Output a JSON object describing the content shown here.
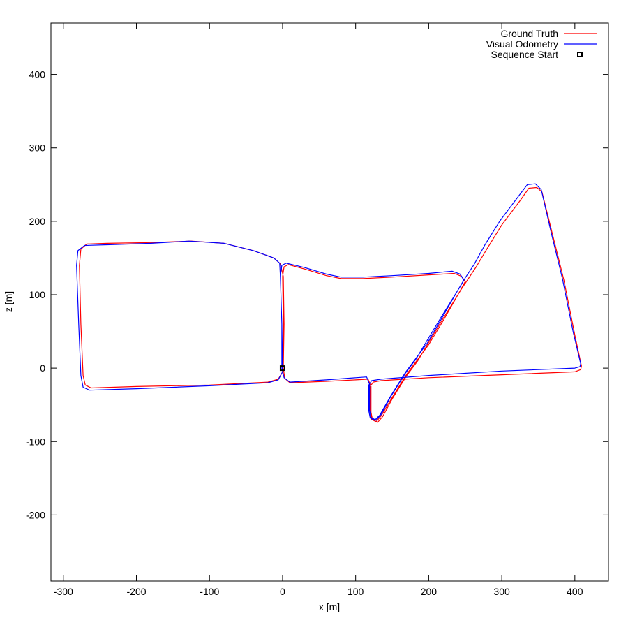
{
  "chart_data": {
    "type": "line",
    "title": "",
    "xlabel": "x [m]",
    "ylabel": "z [m]",
    "xlim": [
      -317,
      446
    ],
    "ylim": [
      -290,
      470
    ],
    "xticks": [
      -300,
      -200,
      -100,
      0,
      100,
      200,
      300,
      400
    ],
    "yticks": [
      -200,
      -100,
      0,
      100,
      200,
      300,
      400
    ],
    "grid": false,
    "legend_position": "top-right",
    "series": [
      {
        "name": "Ground Truth",
        "color": "#ff0000",
        "points": [
          [
            0,
            0
          ],
          [
            1,
            60
          ],
          [
            0,
            125
          ],
          [
            2,
            138
          ],
          [
            8,
            141
          ],
          [
            30,
            135
          ],
          [
            60,
            126
          ],
          [
            80,
            122
          ],
          [
            110,
            122
          ],
          [
            150,
            124
          ],
          [
            200,
            127
          ],
          [
            235,
            129
          ],
          [
            245,
            125
          ],
          [
            250,
            118
          ],
          [
            240,
            100
          ],
          [
            220,
            65
          ],
          [
            200,
            32
          ],
          [
            185,
            12
          ],
          [
            170,
            -8
          ],
          [
            150,
            -40
          ],
          [
            135,
            -65
          ],
          [
            128,
            -73
          ],
          [
            122,
            -70
          ],
          [
            120,
            -60
          ],
          [
            120,
            -25
          ],
          [
            124,
            -19
          ],
          [
            135,
            -17
          ],
          [
            200,
            -13
          ],
          [
            300,
            -9
          ],
          [
            400,
            -5
          ],
          [
            408,
            -2
          ],
          [
            409,
            3
          ],
          [
            400,
            45
          ],
          [
            385,
            120
          ],
          [
            370,
            180
          ],
          [
            355,
            240
          ],
          [
            348,
            246
          ],
          [
            337,
            245
          ],
          [
            325,
            228
          ],
          [
            300,
            195
          ],
          [
            280,
            163
          ],
          [
            265,
            138
          ],
          [
            253,
            120
          ],
          [
            245,
            108
          ],
          [
            220,
            68
          ],
          [
            200,
            35
          ],
          [
            185,
            10
          ],
          [
            170,
            -10
          ],
          [
            150,
            -42
          ],
          [
            137,
            -66
          ],
          [
            130,
            -74
          ],
          [
            123,
            -70
          ],
          [
            121,
            -60
          ],
          [
            121,
            -25
          ],
          [
            117,
            -15
          ],
          [
            100,
            -16
          ],
          [
            60,
            -18
          ],
          [
            10,
            -20
          ],
          [
            3,
            -14
          ],
          [
            1,
            0
          ],
          [
            2,
            60
          ],
          [
            1,
            125
          ],
          [
            -3,
            142
          ],
          [
            -12,
            150
          ],
          [
            -40,
            160
          ],
          [
            -80,
            170
          ],
          [
            -125,
            173
          ],
          [
            -180,
            171
          ],
          [
            -240,
            170
          ],
          [
            -268,
            169
          ],
          [
            -276,
            162
          ],
          [
            -278,
            140
          ],
          [
            -276,
            60
          ],
          [
            -273,
            -10
          ],
          [
            -270,
            -23
          ],
          [
            -262,
            -27
          ],
          [
            -200,
            -25
          ],
          [
            -100,
            -23
          ],
          [
            -20,
            -19
          ],
          [
            -6,
            -15
          ],
          [
            0,
            -5
          ],
          [
            0,
            0
          ]
        ]
      },
      {
        "name": "Visual Odometry",
        "color": "#0000ff",
        "points": [
          [
            0,
            0
          ],
          [
            -1,
            60
          ],
          [
            -3,
            125
          ],
          [
            -1,
            140
          ],
          [
            5,
            143
          ],
          [
            30,
            137
          ],
          [
            60,
            128
          ],
          [
            80,
            124
          ],
          [
            110,
            124
          ],
          [
            150,
            126
          ],
          [
            200,
            129
          ],
          [
            232,
            132
          ],
          [
            243,
            128
          ],
          [
            248,
            120
          ],
          [
            238,
            103
          ],
          [
            218,
            68
          ],
          [
            198,
            34
          ],
          [
            183,
            14
          ],
          [
            168,
            -6
          ],
          [
            148,
            -38
          ],
          [
            133,
            -64
          ],
          [
            126,
            -71
          ],
          [
            120,
            -68
          ],
          [
            118,
            -58
          ],
          [
            118,
            -23
          ],
          [
            122,
            -17
          ],
          [
            135,
            -15
          ],
          [
            200,
            -10
          ],
          [
            300,
            -4
          ],
          [
            400,
            0
          ],
          [
            407,
            2
          ],
          [
            408,
            6
          ],
          [
            398,
            48
          ],
          [
            383,
            122
          ],
          [
            368,
            183
          ],
          [
            354,
            243
          ],
          [
            346,
            251
          ],
          [
            335,
            250
          ],
          [
            322,
            233
          ],
          [
            297,
            200
          ],
          [
            277,
            168
          ],
          [
            262,
            141
          ],
          [
            250,
            123
          ],
          [
            243,
            111
          ],
          [
            218,
            71
          ],
          [
            198,
            38
          ],
          [
            183,
            13
          ],
          [
            168,
            -7
          ],
          [
            148,
            -39
          ],
          [
            135,
            -63
          ],
          [
            128,
            -71
          ],
          [
            121,
            -67
          ],
          [
            119,
            -57
          ],
          [
            119,
            -22
          ],
          [
            115,
            -12
          ],
          [
            100,
            -13
          ],
          [
            60,
            -16
          ],
          [
            10,
            -19
          ],
          [
            2,
            -13
          ],
          [
            -1,
            0
          ],
          [
            -1,
            60
          ],
          [
            -3,
            125
          ],
          [
            -4,
            143
          ],
          [
            -12,
            150
          ],
          [
            -40,
            160
          ],
          [
            -80,
            170
          ],
          [
            -128,
            173
          ],
          [
            -180,
            170
          ],
          [
            -240,
            168
          ],
          [
            -271,
            167
          ],
          [
            -280,
            160
          ],
          [
            -282,
            140
          ],
          [
            -279,
            60
          ],
          [
            -276,
            -10
          ],
          [
            -273,
            -26
          ],
          [
            -264,
            -30
          ],
          [
            -200,
            -28
          ],
          [
            -100,
            -24
          ],
          [
            -20,
            -20
          ],
          [
            -6,
            -16
          ],
          [
            0,
            -5
          ],
          [
            0,
            0
          ]
        ]
      }
    ],
    "markers": [
      {
        "name": "Sequence Start",
        "x": 0,
        "y": 0,
        "shape": "square",
        "color": "#000000"
      }
    ]
  }
}
